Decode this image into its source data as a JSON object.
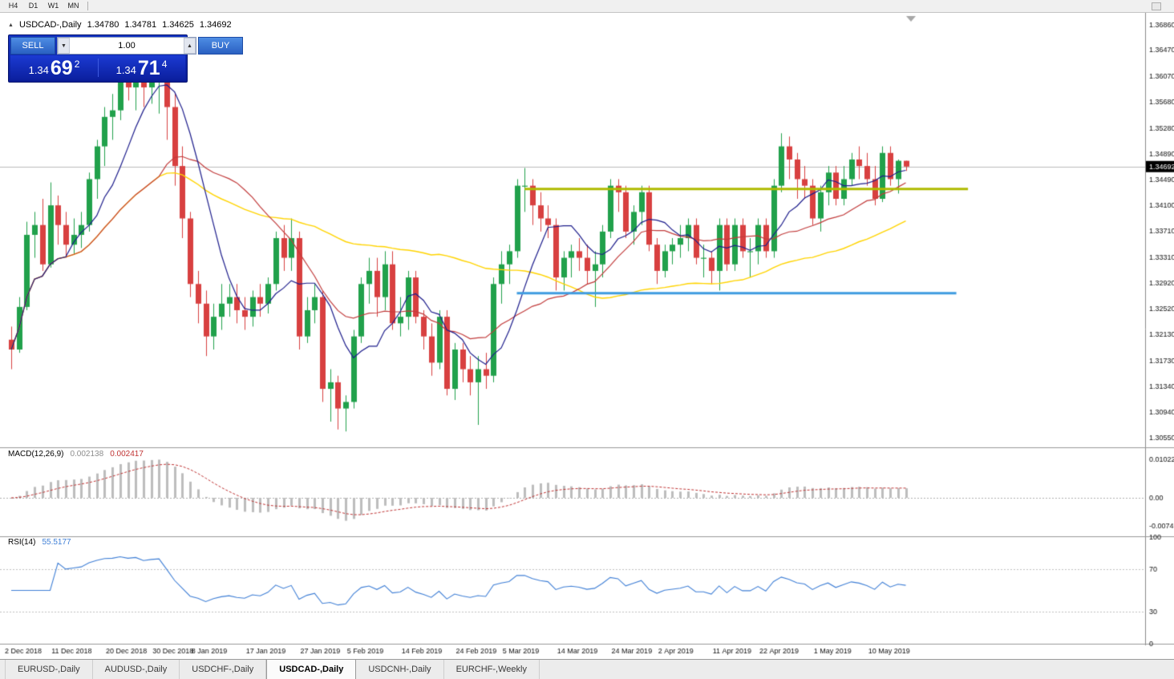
{
  "toolbar": {
    "timeframes": [
      "H4",
      "D1",
      "W1",
      "MN"
    ]
  },
  "icons": {
    "collapse": "▲",
    "vol_down": "▼",
    "vol_up": "▲"
  },
  "chart_header": {
    "symbol_period": "USDCAD-,Daily",
    "open": "1.34780",
    "high": "1.34781",
    "low": "1.34625",
    "close": "1.34692"
  },
  "trade_panel": {
    "sell_label": "SELL",
    "buy_label": "BUY",
    "volume": "1.00",
    "sell_price_small": "1.34",
    "sell_price_big": "69",
    "sell_price_sup": "2",
    "buy_price_small": "1.34",
    "buy_price_big": "71",
    "buy_price_sup": "4"
  },
  "indicators": {
    "macd_label": "MACD(12,26,9)",
    "macd_main": "0.002138",
    "macd_signal": "0.002417",
    "rsi_label": "RSI(14)",
    "rsi_value": "55.5177"
  },
  "tabbar": {
    "tabs": [
      {
        "label": "EURUSD-,Daily",
        "active": false
      },
      {
        "label": "AUDUSD-,Daily",
        "active": false
      },
      {
        "label": "USDCHF-,Daily",
        "active": false
      },
      {
        "label": "USDCAD-,Daily",
        "active": true
      },
      {
        "label": "USDCNH-,Daily",
        "active": false
      },
      {
        "label": "EURCHF-,Weekly",
        "active": false
      }
    ]
  },
  "chart_data": {
    "type": "candlestick",
    "symbol": "USDCAD-",
    "period": "Daily",
    "last_price": "1.34692",
    "y_range": [
      1.3042,
      1.3694
    ],
    "y_ticks": [
      "1.36860",
      "1.36470",
      "1.36070",
      "1.35680",
      "1.35280",
      "1.34890",
      "1.34490",
      "1.34100",
      "1.33710",
      "1.33310",
      "1.32920",
      "1.32520",
      "1.32130",
      "1.31730",
      "1.31340",
      "1.30940",
      "1.30550"
    ],
    "x_labels": [
      [
        0,
        "2 Dec 2018"
      ],
      [
        6,
        "11 Dec 2018"
      ],
      [
        13,
        "20 Dec 2018"
      ],
      [
        19,
        "30 Dec 2018"
      ],
      [
        24,
        "8 Jan 2019"
      ],
      [
        31,
        "17 Jan 2019"
      ],
      [
        38,
        "27 Jan 2019"
      ],
      [
        44,
        "5 Feb 2019"
      ],
      [
        51,
        "14 Feb 2019"
      ],
      [
        58,
        "24 Feb 2019"
      ],
      [
        64,
        "5 Mar 2019"
      ],
      [
        71,
        "14 Mar 2019"
      ],
      [
        78,
        "24 Mar 2019"
      ],
      [
        84,
        "2 Apr 2019"
      ],
      [
        91,
        "11 Apr 2019"
      ],
      [
        97,
        "22 Apr 2019"
      ],
      [
        104,
        "1 May 2019"
      ],
      [
        111,
        "10 May 2019"
      ]
    ],
    "candles": [
      [
        1.3205,
        1.3225,
        1.316,
        1.319
      ],
      [
        1.319,
        1.327,
        1.3185,
        1.3255
      ],
      [
        1.3255,
        1.3385,
        1.325,
        1.3365
      ],
      [
        1.3365,
        1.34,
        1.333,
        1.338
      ],
      [
        1.338,
        1.342,
        1.331,
        1.332
      ],
      [
        1.332,
        1.3445,
        1.3315,
        1.341
      ],
      [
        1.341,
        1.3425,
        1.335,
        1.338
      ],
      [
        1.338,
        1.34,
        1.333,
        1.335
      ],
      [
        1.335,
        1.339,
        1.3335,
        1.3365
      ],
      [
        1.3365,
        1.34,
        1.3345,
        1.338
      ],
      [
        1.338,
        1.346,
        1.337,
        1.345
      ],
      [
        1.345,
        1.351,
        1.342,
        1.35
      ],
      [
        1.35,
        1.356,
        1.347,
        1.3545
      ],
      [
        1.3545,
        1.358,
        1.351,
        1.3555
      ],
      [
        1.3555,
        1.362,
        1.354,
        1.36
      ],
      [
        1.36,
        1.3635,
        1.357,
        1.359
      ],
      [
        1.359,
        1.3625,
        1.3555,
        1.361
      ],
      [
        1.361,
        1.363,
        1.356,
        1.359
      ],
      [
        1.359,
        1.3625,
        1.3565,
        1.3615
      ],
      [
        1.3615,
        1.3638,
        1.355,
        1.363
      ],
      [
        1.363,
        1.3637,
        1.351,
        1.356
      ],
      [
        1.356,
        1.358,
        1.344,
        1.347
      ],
      [
        1.347,
        1.35,
        1.336,
        1.339
      ],
      [
        1.339,
        1.34,
        1.327,
        1.329
      ],
      [
        1.329,
        1.331,
        1.323,
        1.326
      ],
      [
        1.326,
        1.328,
        1.318,
        1.321
      ],
      [
        1.321,
        1.326,
        1.319,
        1.324
      ],
      [
        1.324,
        1.329,
        1.322,
        1.326
      ],
      [
        1.326,
        1.329,
        1.324,
        1.327
      ],
      [
        1.327,
        1.329,
        1.323,
        1.325
      ],
      [
        1.325,
        1.327,
        1.322,
        1.324
      ],
      [
        1.324,
        1.328,
        1.3225,
        1.327
      ],
      [
        1.327,
        1.329,
        1.324,
        1.326
      ],
      [
        1.326,
        1.33,
        1.3245,
        1.329
      ],
      [
        1.329,
        1.337,
        1.328,
        1.336
      ],
      [
        1.336,
        1.338,
        1.331,
        1.333
      ],
      [
        1.333,
        1.339,
        1.331,
        1.336
      ],
      [
        1.336,
        1.337,
        1.319,
        1.321
      ],
      [
        1.321,
        1.327,
        1.32,
        1.325
      ],
      [
        1.325,
        1.329,
        1.323,
        1.327
      ],
      [
        1.327,
        1.328,
        1.311,
        1.313
      ],
      [
        1.313,
        1.316,
        1.308,
        1.314
      ],
      [
        1.314,
        1.315,
        1.3068,
        1.31
      ],
      [
        1.31,
        1.312,
        1.3065,
        1.311
      ],
      [
        1.311,
        1.322,
        1.31,
        1.321
      ],
      [
        1.321,
        1.33,
        1.32,
        1.329
      ],
      [
        1.329,
        1.333,
        1.326,
        1.331
      ],
      [
        1.331,
        1.333,
        1.324,
        1.327
      ],
      [
        1.327,
        1.334,
        1.325,
        1.332
      ],
      [
        1.332,
        1.334,
        1.322,
        1.323
      ],
      [
        1.323,
        1.327,
        1.321,
        1.324
      ],
      [
        1.324,
        1.331,
        1.322,
        1.33
      ],
      [
        1.33,
        1.331,
        1.323,
        1.324
      ],
      [
        1.324,
        1.325,
        1.319,
        1.321
      ],
      [
        1.321,
        1.323,
        1.315,
        1.317
      ],
      [
        1.317,
        1.325,
        1.316,
        1.324
      ],
      [
        1.324,
        1.325,
        1.312,
        1.313
      ],
      [
        1.313,
        1.32,
        1.3113,
        1.319
      ],
      [
        1.319,
        1.32,
        1.314,
        1.316
      ],
      [
        1.316,
        1.318,
        1.312,
        1.314
      ],
      [
        1.314,
        1.318,
        1.3075,
        1.316
      ],
      [
        1.316,
        1.3185,
        1.313,
        1.315
      ],
      [
        1.315,
        1.33,
        1.314,
        1.329
      ],
      [
        1.329,
        1.334,
        1.326,
        1.332
      ],
      [
        1.332,
        1.335,
        1.329,
        1.334
      ],
      [
        1.334,
        1.345,
        1.333,
        1.344
      ],
      [
        1.344,
        1.3467,
        1.34,
        1.344
      ],
      [
        1.344,
        1.345,
        1.338,
        1.341
      ],
      [
        1.341,
        1.343,
        1.337,
        1.339
      ],
      [
        1.339,
        1.341,
        1.336,
        1.338
      ],
      [
        1.338,
        1.339,
        1.328,
        1.33
      ],
      [
        1.33,
        1.334,
        1.328,
        1.333
      ],
      [
        1.333,
        1.335,
        1.33,
        1.334
      ],
      [
        1.334,
        1.336,
        1.331,
        1.333
      ],
      [
        1.333,
        1.335,
        1.329,
        1.331
      ],
      [
        1.331,
        1.334,
        1.3255,
        1.332
      ],
      [
        1.332,
        1.338,
        1.33,
        1.337
      ],
      [
        1.337,
        1.345,
        1.336,
        1.344
      ],
      [
        1.344,
        1.345,
        1.34,
        1.343
      ],
      [
        1.343,
        1.344,
        1.336,
        1.337
      ],
      [
        1.337,
        1.341,
        1.335,
        1.34
      ],
      [
        1.34,
        1.344,
        1.338,
        1.343
      ],
      [
        1.343,
        1.344,
        1.334,
        1.335
      ],
      [
        1.335,
        1.336,
        1.329,
        1.331
      ],
      [
        1.331,
        1.335,
        1.33,
        1.334
      ],
      [
        1.334,
        1.336,
        1.332,
        1.335
      ],
      [
        1.335,
        1.338,
        1.333,
        1.336
      ],
      [
        1.336,
        1.339,
        1.334,
        1.338
      ],
      [
        1.338,
        1.339,
        1.332,
        1.333
      ],
      [
        1.333,
        1.335,
        1.33,
        1.333
      ],
      [
        1.333,
        1.334,
        1.329,
        1.331
      ],
      [
        1.331,
        1.339,
        1.328,
        1.338
      ],
      [
        1.338,
        1.339,
        1.331,
        1.332
      ],
      [
        1.332,
        1.339,
        1.331,
        1.338
      ],
      [
        1.338,
        1.339,
        1.333,
        1.334
      ],
      [
        1.334,
        1.336,
        1.33,
        1.334
      ],
      [
        1.334,
        1.339,
        1.332,
        1.338
      ],
      [
        1.338,
        1.339,
        1.333,
        1.334
      ],
      [
        1.334,
        1.345,
        1.333,
        1.344
      ],
      [
        1.344,
        1.352,
        1.343,
        1.35
      ],
      [
        1.35,
        1.3515,
        1.345,
        1.348
      ],
      [
        1.348,
        1.349,
        1.342,
        1.345
      ],
      [
        1.345,
        1.347,
        1.342,
        1.344
      ],
      [
        1.344,
        1.345,
        1.338,
        1.339
      ],
      [
        1.339,
        1.344,
        1.337,
        1.343
      ],
      [
        1.343,
        1.347,
        1.341,
        1.346
      ],
      [
        1.346,
        1.347,
        1.341,
        1.342
      ],
      [
        1.342,
        1.347,
        1.341,
        1.345
      ],
      [
        1.345,
        1.349,
        1.344,
        1.348
      ],
      [
        1.348,
        1.35,
        1.345,
        1.347
      ],
      [
        1.347,
        1.349,
        1.344,
        1.345
      ],
      [
        1.345,
        1.347,
        1.341,
        1.342
      ],
      [
        1.342,
        1.35,
        1.3415,
        1.349
      ],
      [
        1.349,
        1.35,
        1.344,
        1.345
      ],
      [
        1.345,
        1.348,
        1.3428,
        1.3478
      ],
      [
        1.3478,
        1.34781,
        1.34625,
        1.34692
      ]
    ],
    "ma": {
      "fast_period": 8,
      "mid_period": 20,
      "slow_period": 55
    },
    "hlines": [
      {
        "price": 1.3435,
        "from_idx": 66,
        "to_idx": 123,
        "color": "#afbb00",
        "width": 3
      },
      {
        "price": 1.3276,
        "from_idx": 65,
        "to_idx": 121.5,
        "color": "#3e9be0",
        "width": 3
      }
    ],
    "macd": {
      "scale_top": "0.010225",
      "scale_mid": "0.00",
      "scale_bottom": "-0.007475"
    },
    "rsi": {
      "levels": [
        100,
        70,
        30,
        0
      ]
    },
    "colors": {
      "bull": "#21a14b",
      "bear": "#d84040",
      "ma_fast": "#1d1d8c",
      "ma_mid": "#c23b3b",
      "ma_slow": "#ffd400",
      "macd_hist": "#bdbdbd",
      "macd_signal": "#c03333",
      "rsi_line": "#3f7fd6",
      "price_line": "#bcbcbc",
      "marker_bg": "#000000",
      "marker_fg": "#ffffff"
    }
  }
}
